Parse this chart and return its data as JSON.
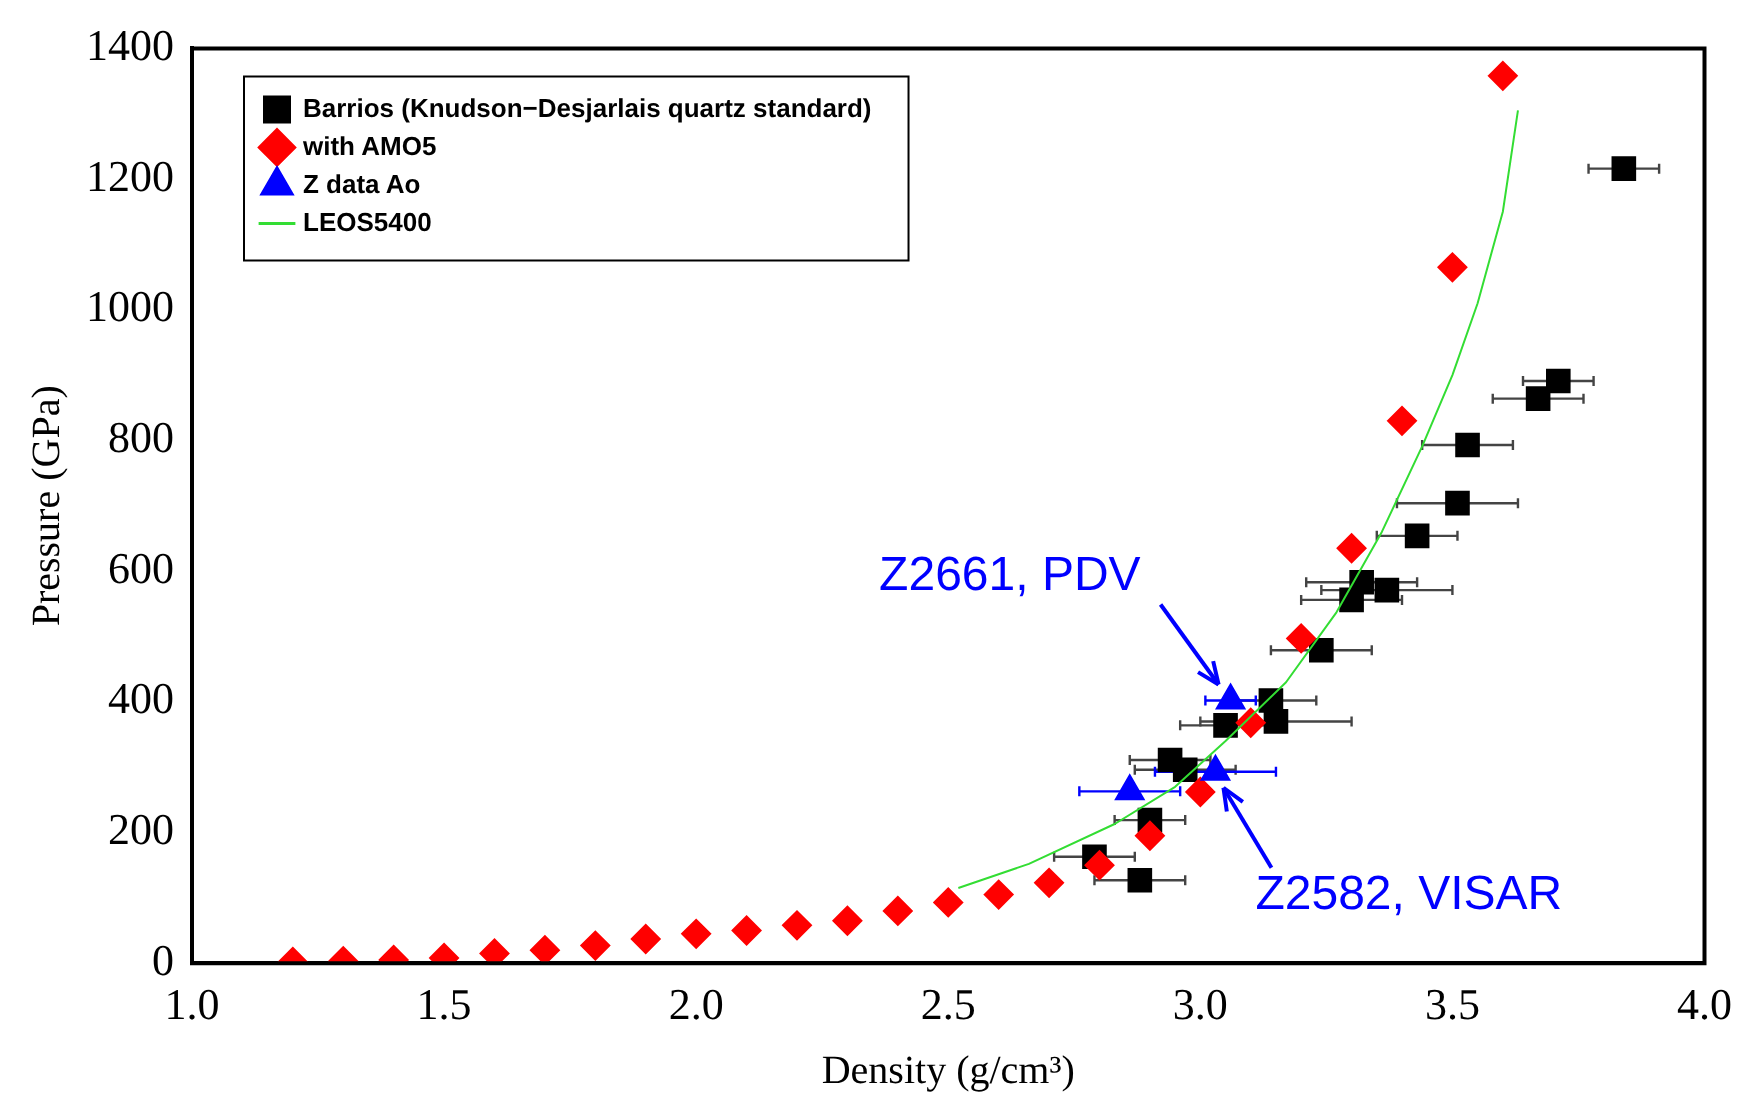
{
  "chart_data": {
    "type": "scatter",
    "xlabel": "Density (g/cm³)",
    "ylabel": "Pressure (GPa)",
    "xlim": [
      1.0,
      4.0
    ],
    "xticks": [
      {
        "value": 1,
        "label": "1.0"
      },
      {
        "value": 1.5,
        "label": "1.5"
      },
      {
        "value": 2,
        "label": "2.0"
      },
      {
        "value": 2.5,
        "label": "2.5"
      },
      {
        "value": 3,
        "label": "3.0"
      },
      {
        "value": 3.5,
        "label": "3.5"
      },
      {
        "value": 4,
        "label": "4.0"
      }
    ],
    "ylim": [
      0,
      1400
    ],
    "yticks": [
      0,
      200,
      400,
      600,
      800,
      1000,
      1200,
      1400
    ],
    "grid": false,
    "legend": "top left",
    "series": [
      {
        "name": "Barrios (Knudson−Desjarlais quartz standard)",
        "type": "scatter",
        "marker": "square",
        "color": "#000000",
        "x": [
          3.84,
          3.71,
          3.67,
          3.53,
          3.51,
          3.43,
          3.32,
          3.37,
          3.3,
          3.24,
          3.14,
          3.15,
          3.05,
          2.94,
          2.97,
          2.9,
          2.79,
          2.88
        ],
        "values": [
          1216,
          891,
          864,
          793,
          704,
          654,
          583,
          571,
          556,
          479,
          402,
          370,
          364,
          311,
          296,
          219,
          163,
          127
        ],
        "xerrors": [
          0.07,
          0.07,
          0.09,
          0.09,
          0.12,
          0.08,
          0.11,
          0.13,
          0.1,
          0.1,
          0.09,
          0.15,
          0.09,
          0.08,
          0.1,
          0.07,
          0.08,
          0.09
        ]
      },
      {
        "name": "with AMO5",
        "type": "scatter",
        "marker": "diamond",
        "color": "#ff0000",
        "x": [
          1.2,
          1.3,
          1.4,
          1.5,
          1.6,
          1.7,
          1.8,
          1.9,
          2.0,
          2.1,
          2.2,
          2.3,
          2.4,
          2.5,
          2.6,
          2.7,
          2.8,
          2.9,
          3.0,
          3.1,
          3.2,
          3.3,
          3.4,
          3.5,
          3.6
        ],
        "values": [
          2,
          3,
          5,
          8,
          15,
          20,
          27,
          37,
          45,
          50,
          58,
          65,
          80,
          93,
          105,
          123,
          150,
          195,
          262,
          368,
          497,
          635,
          830,
          1065,
          1358
        ]
      },
      {
        "name": "Z data Ao",
        "type": "scatter",
        "marker": "triangle",
        "color": "#0000ff",
        "x": [
          2.86,
          3.03,
          3.06
        ],
        "values": [
          263,
          293,
          402
        ],
        "xerrors": [
          0.1,
          0.12,
          0.05
        ]
      },
      {
        "name": "LEOS5400",
        "type": "line",
        "marker": "none",
        "line_style": "solid",
        "color": "#33dd33",
        "x": [
          2.52,
          2.66,
          2.83,
          2.95,
          3.05,
          3.17,
          3.27,
          3.36,
          3.44,
          3.5,
          3.55,
          3.6,
          3.63
        ],
        "values": [
          115,
          152,
          213,
          270,
          340,
          430,
          537,
          660,
          791,
          900,
          1010,
          1150,
          1305
        ]
      }
    ],
    "annotations": [
      {
        "text": "Z2661, PDV",
        "x": 3.06,
        "y": 402
      },
      {
        "text": "Z2582, VISAR",
        "x": 3.03,
        "y": 293
      }
    ]
  }
}
